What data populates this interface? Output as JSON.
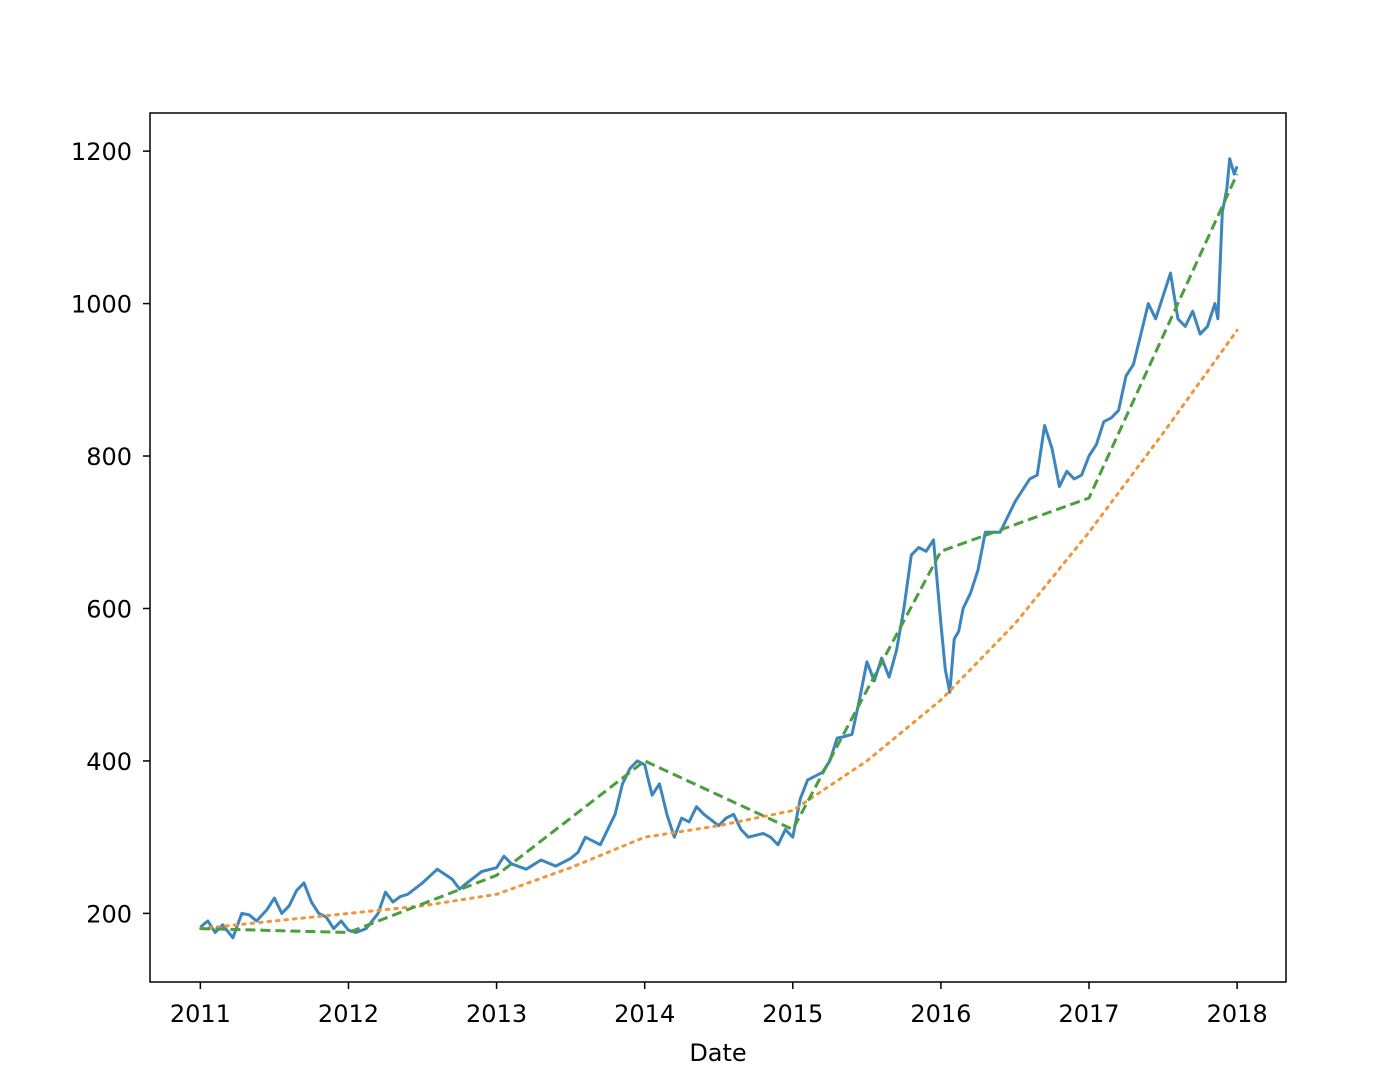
{
  "chart_data": {
    "type": "line",
    "title": "",
    "xlabel": "Date",
    "ylabel": "",
    "xlim": [
      2010.66,
      2018.33
    ],
    "ylim": [
      110,
      1250
    ],
    "x_ticks": [
      2011,
      2012,
      2013,
      2014,
      2015,
      2016,
      2017,
      2018
    ],
    "x_tick_labels": [
      "2011",
      "2012",
      "2013",
      "2014",
      "2015",
      "2016",
      "2017",
      "2018"
    ],
    "y_ticks": [
      200,
      400,
      600,
      800,
      1000,
      1200
    ],
    "y_tick_labels": [
      "200",
      "400",
      "600",
      "800",
      "1000",
      "1200"
    ],
    "grid": false,
    "legend": null,
    "series": [
      {
        "style": "solid",
        "color": "#3d85bd",
        "x": [
          2011.0,
          2011.05,
          2011.1,
          2011.15,
          2011.22,
          2011.28,
          2011.33,
          2011.38,
          2011.45,
          2011.5,
          2011.55,
          2011.6,
          2011.65,
          2011.7,
          2011.75,
          2011.8,
          2011.85,
          2011.9,
          2011.95,
          2012.0,
          2012.05,
          2012.12,
          2012.2,
          2012.25,
          2012.3,
          2012.35,
          2012.4,
          2012.5,
          2012.6,
          2012.7,
          2012.75,
          2012.8,
          2012.9,
          2013.0,
          2013.05,
          2013.1,
          2013.2,
          2013.3,
          2013.4,
          2013.5,
          2013.55,
          2013.6,
          2013.7,
          2013.75,
          2013.8,
          2013.85,
          2013.9,
          2013.95,
          2014.0,
          2014.05,
          2014.1,
          2014.15,
          2014.2,
          2014.25,
          2014.3,
          2014.35,
          2014.4,
          2014.5,
          2014.55,
          2014.6,
          2014.65,
          2014.7,
          2014.8,
          2014.85,
          2014.9,
          2014.95,
          2015.0,
          2015.05,
          2015.1,
          2015.15,
          2015.2,
          2015.25,
          2015.3,
          2015.35,
          2015.4,
          2015.45,
          2015.5,
          2015.55,
          2015.6,
          2015.65,
          2015.7,
          2015.75,
          2015.8,
          2015.85,
          2015.9,
          2015.95,
          2016.0,
          2016.03,
          2016.06,
          2016.09,
          2016.12,
          2016.15,
          2016.2,
          2016.25,
          2016.3,
          2016.35,
          2016.4,
          2016.45,
          2016.5,
          2016.55,
          2016.6,
          2016.65,
          2016.7,
          2016.75,
          2016.8,
          2016.85,
          2016.9,
          2016.95,
          2017.0,
          2017.05,
          2017.1,
          2017.15,
          2017.2,
          2017.25,
          2017.3,
          2017.35,
          2017.4,
          2017.45,
          2017.5,
          2017.55,
          2017.6,
          2017.65,
          2017.7,
          2017.75,
          2017.8,
          2017.85,
          2017.87,
          2017.9,
          2017.93,
          2017.95,
          2017.98,
          2018.0
        ],
        "y": [
          182,
          190,
          175,
          185,
          168,
          200,
          198,
          190,
          205,
          220,
          200,
          210,
          230,
          240,
          215,
          200,
          195,
          180,
          190,
          178,
          175,
          180,
          200,
          228,
          215,
          222,
          225,
          240,
          258,
          245,
          232,
          240,
          255,
          260,
          275,
          265,
          258,
          270,
          262,
          272,
          280,
          300,
          290,
          310,
          330,
          370,
          390,
          400,
          395,
          355,
          370,
          330,
          300,
          325,
          320,
          340,
          330,
          315,
          325,
          330,
          310,
          300,
          305,
          300,
          290,
          310,
          300,
          350,
          375,
          380,
          385,
          400,
          430,
          432,
          435,
          480,
          530,
          505,
          535,
          510,
          545,
          600,
          670,
          680,
          675,
          690,
          580,
          520,
          490,
          560,
          570,
          600,
          620,
          650,
          700,
          700,
          700,
          720,
          740,
          755,
          770,
          775,
          840,
          810,
          760,
          780,
          770,
          775,
          800,
          815,
          845,
          850,
          860,
          905,
          920,
          960,
          1000,
          980,
          1010,
          1040,
          980,
          970,
          990,
          960,
          970,
          1000,
          980,
          1120,
          1150,
          1190,
          1170,
          1180
        ],
        "label": ""
      },
      {
        "style": "dotted",
        "color": "#f0963a",
        "x": [
          2011.0,
          2011.5,
          2012.0,
          2012.5,
          2013.0,
          2013.5,
          2014.0,
          2014.5,
          2015.0,
          2015.5,
          2016.0,
          2016.5,
          2017.0,
          2017.5,
          2018.0
        ],
        "y": [
          180,
          190,
          200,
          210,
          225,
          260,
          300,
          315,
          335,
          400,
          480,
          580,
          700,
          830,
          965
        ],
        "label": ""
      },
      {
        "style": "dashed",
        "color": "#4a9e3c",
        "x": [
          2011.0,
          2012.0,
          2013.0,
          2014.0,
          2015.0,
          2016.0,
          2017.0,
          2018.0
        ],
        "y": [
          180,
          175,
          250,
          400,
          310,
          675,
          745,
          1170
        ],
        "label": ""
      }
    ]
  }
}
